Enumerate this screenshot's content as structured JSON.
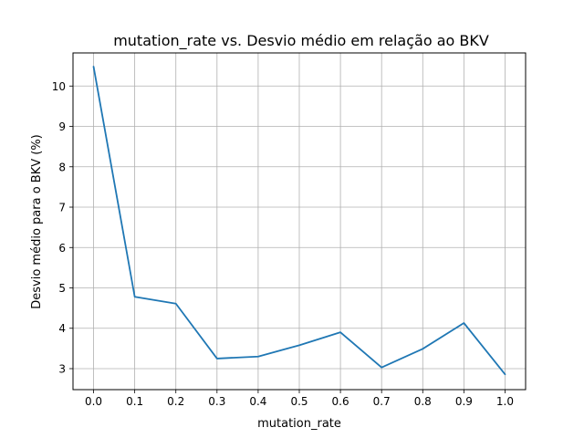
{
  "chart_data": {
    "type": "line",
    "title": "mutation_rate vs. Desvio médio em relação ao BKV",
    "xlabel": "mutation_rate",
    "ylabel": "Desvio médio para o BKV (%)",
    "xlim": [
      -0.05,
      1.05
    ],
    "ylim": [
      2.48,
      10.82
    ],
    "xticks": [
      0.0,
      0.1,
      0.2,
      0.3,
      0.4,
      0.5,
      0.6,
      0.7,
      0.8,
      0.9,
      1.0
    ],
    "xtick_labels": [
      "0.0",
      "0.1",
      "0.2",
      "0.3",
      "0.4",
      "0.5",
      "0.6",
      "0.7",
      "0.8",
      "0.9",
      "1.0"
    ],
    "yticks": [
      3,
      4,
      5,
      6,
      7,
      8,
      9,
      10
    ],
    "ytick_labels": [
      "3",
      "4",
      "5",
      "6",
      "7",
      "8",
      "9",
      "10"
    ],
    "grid": true,
    "series": [
      {
        "color": "#1f77b4",
        "x": [
          0.0,
          0.1,
          0.2,
          0.3,
          0.4,
          0.5,
          0.6,
          0.7,
          0.8,
          0.9,
          1.0
        ],
        "y": [
          10.48,
          4.78,
          4.61,
          3.25,
          3.3,
          3.58,
          3.9,
          3.03,
          3.49,
          4.13,
          2.86
        ]
      }
    ]
  }
}
